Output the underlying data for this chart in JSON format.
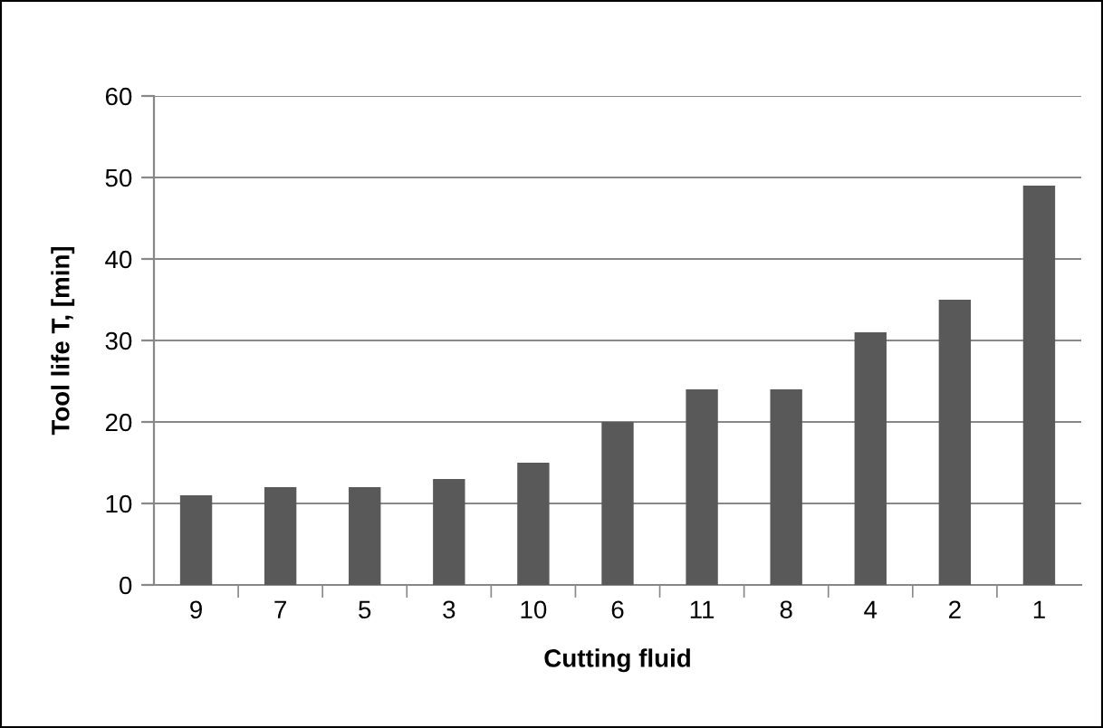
{
  "chart_data": {
    "type": "bar",
    "xlabel": "Cutting fluid",
    "ylabel": "Tool life T, [min]",
    "categories": [
      "9",
      "7",
      "5",
      "3",
      "10",
      "6",
      "11",
      "8",
      "4",
      "2",
      "1"
    ],
    "values": [
      11,
      12,
      12,
      13,
      15,
      20,
      24,
      24,
      31,
      35,
      49
    ],
    "color": "#595959",
    "ylim": [
      0,
      60
    ],
    "yticks": [
      0,
      10,
      20,
      30,
      40,
      50,
      60
    ],
    "grid": "y",
    "legend": false
  }
}
